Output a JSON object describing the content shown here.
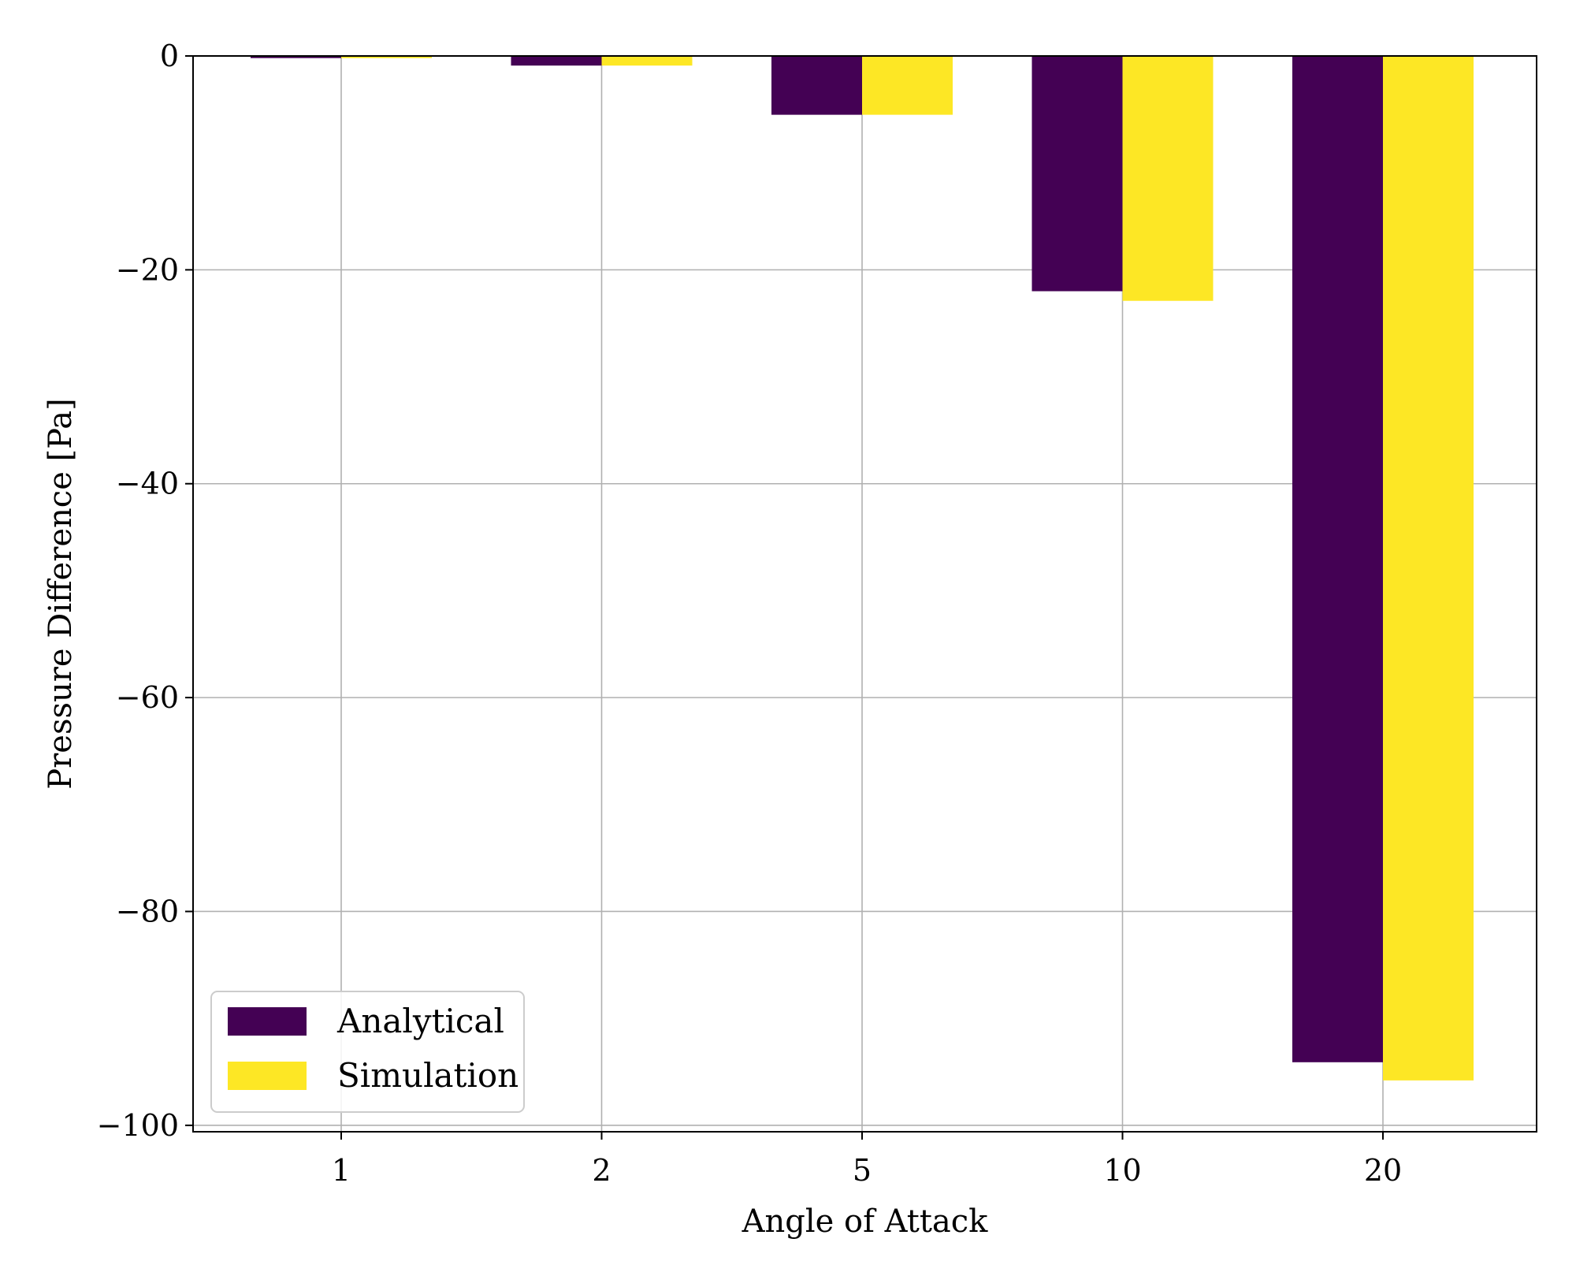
{
  "chart_data": {
    "type": "bar",
    "title": "",
    "xlabel": "Angle of Attack",
    "ylabel": "Pressure Difference [Pa]",
    "categories": [
      "1",
      "2",
      "5",
      "10",
      "20"
    ],
    "series": [
      {
        "name": "Analytical",
        "color": "#440154",
        "values": [
          -0.2,
          -0.9,
          -5.5,
          -22.0,
          -94.1
        ]
      },
      {
        "name": "Simulation",
        "color": "#fde725",
        "values": [
          -0.2,
          -0.9,
          -5.5,
          -22.9,
          -95.8
        ]
      }
    ],
    "ylim": [
      -100.6,
      0
    ],
    "yticks": [
      0,
      -20,
      -40,
      -60,
      -80,
      -100
    ],
    "ytick_labels": [
      "0",
      "−20",
      "−40",
      "−60",
      "−80",
      "−100"
    ],
    "grid": true,
    "legend_position": "lower-left"
  }
}
